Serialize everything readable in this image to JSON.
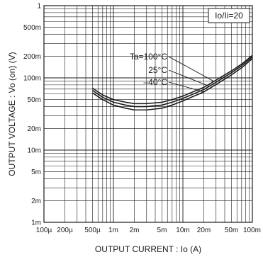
{
  "chart_data": {
    "type": "line",
    "xlabel": "OUTPUT  CURRENT : Io (A)",
    "ylabel": "OUTPUT  VOLTAGE : Vo (on) (V)",
    "xscale": "log",
    "yscale": "log",
    "xlim": [
      0.0001,
      0.1
    ],
    "ylim": [
      0.001,
      1
    ],
    "grid": true,
    "x_tick_labels": [
      "100µ",
      "200µ",
      "500µ",
      "1m",
      "2m",
      "5m",
      "10m",
      "20m",
      "50m",
      "100m"
    ],
    "y_tick_labels": [
      "1",
      "500m",
      "200m",
      "100m",
      "50m",
      "20m",
      "10m",
      "5m",
      "2m",
      "1m"
    ],
    "condition_label": "Io/Ii=20",
    "series": [
      {
        "name": "Ta=100°C",
        "x": [
          0.0005,
          0.0007,
          0.001,
          0.0015,
          0.002,
          0.003,
          0.005,
          0.007,
          0.01,
          0.02,
          0.03,
          0.05,
          0.07,
          0.1
        ],
        "y": [
          0.072,
          0.058,
          0.05,
          0.046,
          0.044,
          0.044,
          0.046,
          0.05,
          0.056,
          0.074,
          0.093,
          0.125,
          0.155,
          0.205
        ]
      },
      {
        "name": "25°C",
        "x": [
          0.0005,
          0.0007,
          0.001,
          0.0015,
          0.002,
          0.003,
          0.005,
          0.007,
          0.01,
          0.02,
          0.03,
          0.05,
          0.07,
          0.1
        ],
        "y": [
          0.067,
          0.054,
          0.046,
          0.042,
          0.04,
          0.04,
          0.042,
          0.046,
          0.052,
          0.069,
          0.087,
          0.118,
          0.147,
          0.195
        ]
      },
      {
        "name": "–40°C",
        "x": [
          0.0005,
          0.0007,
          0.001,
          0.0015,
          0.002,
          0.003,
          0.005,
          0.007,
          0.01,
          0.02,
          0.03,
          0.05,
          0.07,
          0.1
        ],
        "y": [
          0.062,
          0.05,
          0.042,
          0.038,
          0.036,
          0.036,
          0.038,
          0.042,
          0.048,
          0.064,
          0.081,
          0.11,
          0.138,
          0.185
        ]
      }
    ],
    "colors": {
      "line": "#1a1a1a",
      "grid": "#1a1a1a"
    }
  }
}
